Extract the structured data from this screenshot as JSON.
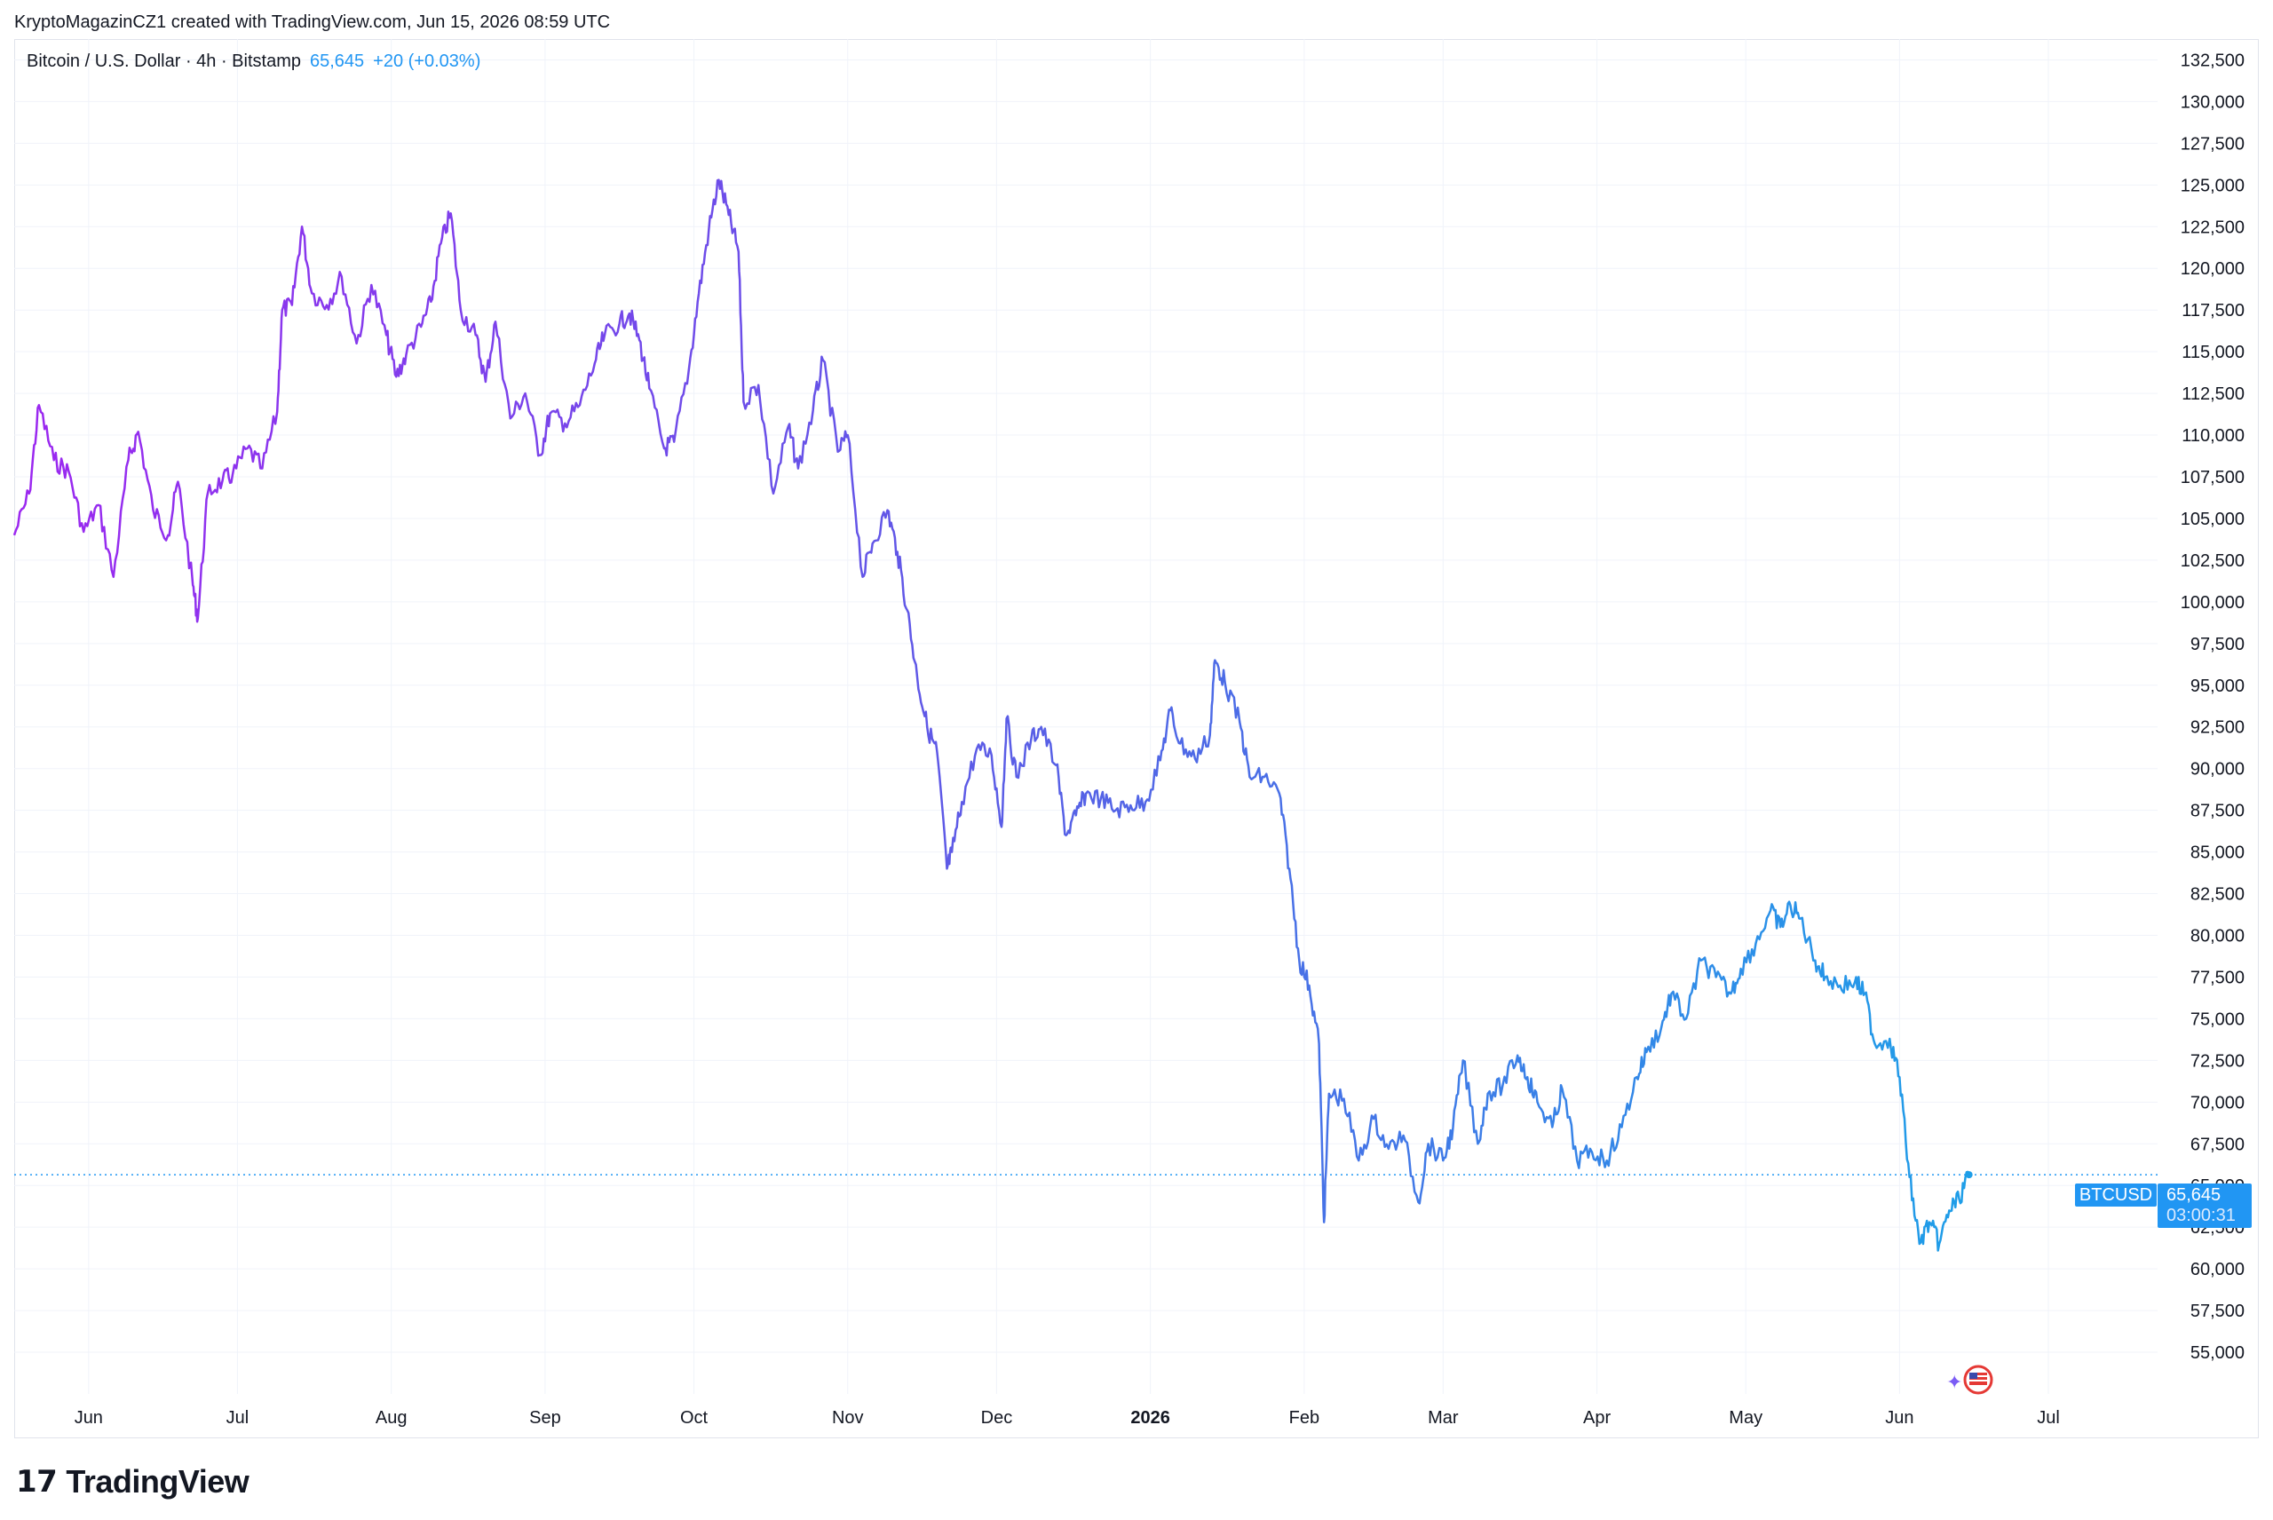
{
  "header": {
    "creator_line": "KryptoMagazinCZ1 created with TradingView.com, Jun 15, 2026 08:59 UTC"
  },
  "legend": {
    "symbol_desc": "Bitcoin / U.S. Dollar · 4h · Bitstamp",
    "last_price": "65,645",
    "change": "+20 (+0.03%)"
  },
  "price_badge": {
    "symbol": "BTCUSD",
    "price": "65,645",
    "countdown": "03:00:31"
  },
  "footer": {
    "logo_text": "TradingView",
    "logo_mark": "17"
  },
  "icons": {
    "flag": "us-flag-event-icon"
  },
  "colors": {
    "line_start": "#9c27f0",
    "line_mid": "#5b5ce6",
    "line_end": "#1e9ee8",
    "axis_text": "#131722",
    "grid": "#f0f3fa",
    "badge": "#2196f3"
  },
  "chart_data": {
    "type": "line",
    "title": "Bitcoin / U.S. Dollar · 4h · Bitstamp",
    "xlabel": "",
    "ylabel": "",
    "ylim": [
      52500,
      133750
    ],
    "y_ticks": [
      55000,
      57500,
      60000,
      62500,
      65000,
      67500,
      70000,
      72500,
      75000,
      77500,
      80000,
      82500,
      85000,
      87500,
      90000,
      92500,
      95000,
      97500,
      100000,
      102500,
      105000,
      107500,
      110000,
      112500,
      115000,
      117500,
      120000,
      122500,
      125000,
      127500,
      130000,
      132500
    ],
    "y_tick_labels": [
      "55,000",
      "57,500",
      "60,000",
      "62,500",
      "65,000",
      "67,500",
      "70,000",
      "72,500",
      "75,000",
      "77,500",
      "80,000",
      "82,500",
      "85,000",
      "87,500",
      "90,000",
      "92,500",
      "95,000",
      "97,500",
      "100,000",
      "102,500",
      "105,000",
      "107,500",
      "110,000",
      "112,500",
      "115,000",
      "117,500",
      "120,000",
      "122,500",
      "125,000",
      "127,500",
      "130,000",
      "132,500"
    ],
    "x_ticks": [
      {
        "date": "2025-06-01",
        "label": "Jun"
      },
      {
        "date": "2025-07-01",
        "label": "Jul"
      },
      {
        "date": "2025-08-01",
        "label": "Aug"
      },
      {
        "date": "2025-09-01",
        "label": "Sep"
      },
      {
        "date": "2025-10-01",
        "label": "Oct"
      },
      {
        "date": "2025-11-01",
        "label": "Nov"
      },
      {
        "date": "2025-12-01",
        "label": "Dec"
      },
      {
        "date": "2026-01-01",
        "label": "2026",
        "bold": true
      },
      {
        "date": "2026-02-01",
        "label": "Feb"
      },
      {
        "date": "2026-03-01",
        "label": "Mar"
      },
      {
        "date": "2026-04-01",
        "label": "Apr"
      },
      {
        "date": "2026-05-01",
        "label": "May"
      },
      {
        "date": "2026-06-01",
        "label": "Jun"
      },
      {
        "date": "2026-07-01",
        "label": "Jul"
      }
    ],
    "xlim": [
      "2025-05-17",
      "2026-07-23"
    ],
    "last_value": 65645,
    "grid": true,
    "series": [
      {
        "values": [
          [
            "2025-05-17",
            104000
          ],
          [
            "2025-05-20",
            106500
          ],
          [
            "2025-05-22",
            111800
          ],
          [
            "2025-05-25",
            108500
          ],
          [
            "2025-05-28",
            107800
          ],
          [
            "2025-05-31",
            104200
          ],
          [
            "2025-06-03",
            105800
          ],
          [
            "2025-06-06",
            101500
          ],
          [
            "2025-06-09",
            108500
          ],
          [
            "2025-06-11",
            110200
          ],
          [
            "2025-06-14",
            105500
          ],
          [
            "2025-06-17",
            104000
          ],
          [
            "2025-06-19",
            107200
          ],
          [
            "2025-06-22",
            101000
          ],
          [
            "2025-06-23",
            99000
          ],
          [
            "2025-06-25",
            106500
          ],
          [
            "2025-06-28",
            107300
          ],
          [
            "2025-06-30",
            107600
          ],
          [
            "2025-07-03",
            109200
          ],
          [
            "2025-07-06",
            108000
          ],
          [
            "2025-07-09",
            111400
          ],
          [
            "2025-07-10",
            117500
          ],
          [
            "2025-07-12",
            117800
          ],
          [
            "2025-07-14",
            122500
          ],
          [
            "2025-07-16",
            118500
          ],
          [
            "2025-07-19",
            117800
          ],
          [
            "2025-07-22",
            119500
          ],
          [
            "2025-07-25",
            115500
          ],
          [
            "2025-07-28",
            119000
          ],
          [
            "2025-07-31",
            116000
          ],
          [
            "2025-08-02",
            113500
          ],
          [
            "2025-08-04",
            114800
          ],
          [
            "2025-08-07",
            116500
          ],
          [
            "2025-08-09",
            118000
          ],
          [
            "2025-08-11",
            121500
          ],
          [
            "2025-08-13",
            123300
          ],
          [
            "2025-08-15",
            117500
          ],
          [
            "2025-08-18",
            116000
          ],
          [
            "2025-08-20",
            113200
          ],
          [
            "2025-08-22",
            116800
          ],
          [
            "2025-08-25",
            111000
          ],
          [
            "2025-08-28",
            112500
          ],
          [
            "2025-08-31",
            108800
          ],
          [
            "2025-09-02",
            111300
          ],
          [
            "2025-09-05",
            110700
          ],
          [
            "2025-09-08",
            111800
          ],
          [
            "2025-09-11",
            114300
          ],
          [
            "2025-09-13",
            116000
          ],
          [
            "2025-09-16",
            116700
          ],
          [
            "2025-09-18",
            117300
          ],
          [
            "2025-09-20",
            115700
          ],
          [
            "2025-09-22",
            112800
          ],
          [
            "2025-09-25",
            109200
          ],
          [
            "2025-09-27",
            109600
          ],
          [
            "2025-09-30",
            114000
          ],
          [
            "2025-10-02",
            118500
          ],
          [
            "2025-10-04",
            122300
          ],
          [
            "2025-10-06",
            125300
          ],
          [
            "2025-10-08",
            123200
          ],
          [
            "2025-10-10",
            121000
          ],
          [
            "2025-10-11",
            112000
          ],
          [
            "2025-10-14",
            113000
          ],
          [
            "2025-10-17",
            106500
          ],
          [
            "2025-10-20",
            110500
          ],
          [
            "2025-10-22",
            108000
          ],
          [
            "2025-10-25",
            111500
          ],
          [
            "2025-10-27",
            114500
          ],
          [
            "2025-10-30",
            109000
          ],
          [
            "2025-11-01",
            110000
          ],
          [
            "2025-11-04",
            101500
          ],
          [
            "2025-11-06",
            103500
          ],
          [
            "2025-11-09",
            105500
          ],
          [
            "2025-11-11",
            103000
          ],
          [
            "2025-11-13",
            99500
          ],
          [
            "2025-11-15",
            95500
          ],
          [
            "2025-11-17",
            92500
          ],
          [
            "2025-11-19",
            91000
          ],
          [
            "2025-11-21",
            84000
          ],
          [
            "2025-11-22",
            85000
          ],
          [
            "2025-11-24",
            88000
          ],
          [
            "2025-11-27",
            91200
          ],
          [
            "2025-11-30",
            90800
          ],
          [
            "2025-12-02",
            86500
          ],
          [
            "2025-12-03",
            93000
          ],
          [
            "2025-12-05",
            89500
          ],
          [
            "2025-12-08",
            91800
          ],
          [
            "2025-12-10",
            92500
          ],
          [
            "2025-12-13",
            90200
          ],
          [
            "2025-12-15",
            86000
          ],
          [
            "2025-12-17",
            87200
          ],
          [
            "2025-12-19",
            88500
          ],
          [
            "2025-12-22",
            88200
          ],
          [
            "2025-12-25",
            87500
          ],
          [
            "2025-12-28",
            87800
          ],
          [
            "2025-12-31",
            88000
          ],
          [
            "2026-01-03",
            90500
          ],
          [
            "2026-01-05",
            93500
          ],
          [
            "2026-01-07",
            91500
          ],
          [
            "2026-01-10",
            90600
          ],
          [
            "2026-01-13",
            92000
          ],
          [
            "2026-01-14",
            96500
          ],
          [
            "2026-01-16",
            95200
          ],
          [
            "2026-01-19",
            92800
          ],
          [
            "2026-01-21",
            89500
          ],
          [
            "2026-01-24",
            89500
          ],
          [
            "2026-01-27",
            88500
          ],
          [
            "2026-01-29",
            84000
          ],
          [
            "2026-01-31",
            78500
          ],
          [
            "2026-02-02",
            77000
          ],
          [
            "2026-02-04",
            73500
          ],
          [
            "2026-02-05",
            62800
          ],
          [
            "2026-02-06",
            70500
          ],
          [
            "2026-02-09",
            70200
          ],
          [
            "2026-02-12",
            66500
          ],
          [
            "2026-02-15",
            69000
          ],
          [
            "2026-02-18",
            67200
          ],
          [
            "2026-02-21",
            68000
          ],
          [
            "2026-02-24",
            64000
          ],
          [
            "2026-02-26",
            67500
          ],
          [
            "2026-03-01",
            66500
          ],
          [
            "2026-03-03",
            68500
          ],
          [
            "2026-03-05",
            72500
          ],
          [
            "2026-03-08",
            67500
          ],
          [
            "2026-03-10",
            70500
          ],
          [
            "2026-03-13",
            71000
          ],
          [
            "2026-03-16",
            72800
          ],
          [
            "2026-03-18",
            71500
          ],
          [
            "2026-03-20",
            70000
          ],
          [
            "2026-03-23",
            68500
          ],
          [
            "2026-03-25",
            70800
          ],
          [
            "2026-03-28",
            66500
          ],
          [
            "2026-03-31",
            67000
          ],
          [
            "2026-04-03",
            66500
          ],
          [
            "2026-04-06",
            68500
          ],
          [
            "2026-04-09",
            71500
          ],
          [
            "2026-04-11",
            73000
          ],
          [
            "2026-04-14",
            74500
          ],
          [
            "2026-04-16",
            76500
          ],
          [
            "2026-04-19",
            75000
          ],
          [
            "2026-04-22",
            78500
          ],
          [
            "2026-04-25",
            77500
          ],
          [
            "2026-04-28",
            76500
          ],
          [
            "2026-04-30",
            78000
          ],
          [
            "2026-05-03",
            79500
          ],
          [
            "2026-05-06",
            81500
          ],
          [
            "2026-05-08",
            80500
          ],
          [
            "2026-05-10",
            81800
          ],
          [
            "2026-05-12",
            81000
          ],
          [
            "2026-05-15",
            78500
          ],
          [
            "2026-05-17",
            77500
          ],
          [
            "2026-05-20",
            77000
          ],
          [
            "2026-05-23",
            77200
          ],
          [
            "2026-05-25",
            76500
          ],
          [
            "2026-05-27",
            73500
          ],
          [
            "2026-05-30",
            73800
          ],
          [
            "2026-06-01",
            71500
          ],
          [
            "2026-06-03",
            65500
          ],
          [
            "2026-06-05",
            61500
          ],
          [
            "2026-06-07",
            62800
          ],
          [
            "2026-06-09",
            61500
          ],
          [
            "2026-06-11",
            63500
          ],
          [
            "2026-06-13",
            64200
          ],
          [
            "2026-06-15",
            65645
          ]
        ]
      }
    ]
  }
}
